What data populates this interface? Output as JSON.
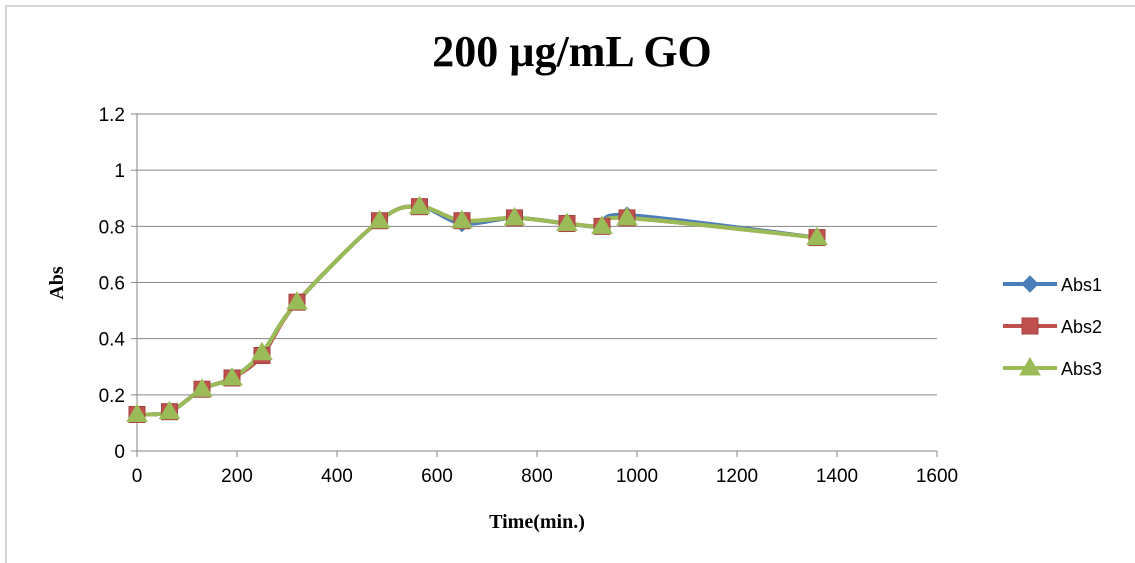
{
  "chart_data": {
    "type": "line",
    "title": "200 µg/mL GO",
    "xlabel": "Time(min.)",
    "ylabel": "Abs",
    "xlim": [
      0,
      1600
    ],
    "ylim": [
      0,
      1.2
    ],
    "x_ticks": [
      0,
      200,
      400,
      600,
      800,
      1000,
      1200,
      1400,
      1600
    ],
    "y_ticks": [
      0,
      0.2,
      0.4,
      0.6,
      0.8,
      1,
      1.2
    ],
    "x_tick_labels": [
      "0",
      "200",
      "400",
      "600",
      "800",
      "1000",
      "1200",
      "1400",
      "1600"
    ],
    "y_tick_labels": [
      "0",
      "0.2",
      "0.4",
      "0.6",
      "0.8",
      "1",
      "1.2"
    ],
    "grid": "horizontal",
    "legend_position": "right",
    "series": [
      {
        "name": "Abs1",
        "color": "#4a7ebb",
        "marker": "diamond",
        "x": [
          0,
          65,
          130,
          190,
          250,
          320,
          485,
          565,
          650,
          755,
          860,
          930,
          980,
          1360
        ],
        "y": [
          0.13,
          0.14,
          0.22,
          0.26,
          0.35,
          0.53,
          0.82,
          0.87,
          0.81,
          0.83,
          0.81,
          0.8,
          0.84,
          0.76
        ]
      },
      {
        "name": "Abs2",
        "color": "#c0504d",
        "marker": "square",
        "x": [
          0,
          65,
          130,
          190,
          250,
          320,
          485,
          565,
          650,
          755,
          860,
          930,
          980,
          1360
        ],
        "y": [
          0.13,
          0.14,
          0.22,
          0.26,
          0.34,
          0.53,
          0.82,
          0.87,
          0.82,
          0.83,
          0.81,
          0.8,
          0.83,
          0.76
        ]
      },
      {
        "name": "Abs3",
        "color": "#9bbb59",
        "marker": "triangle",
        "x": [
          0,
          65,
          130,
          190,
          250,
          320,
          485,
          565,
          650,
          755,
          860,
          930,
          980,
          1360
        ],
        "y": [
          0.13,
          0.14,
          0.22,
          0.26,
          0.35,
          0.53,
          0.82,
          0.87,
          0.82,
          0.83,
          0.81,
          0.8,
          0.83,
          0.76
        ]
      }
    ]
  }
}
